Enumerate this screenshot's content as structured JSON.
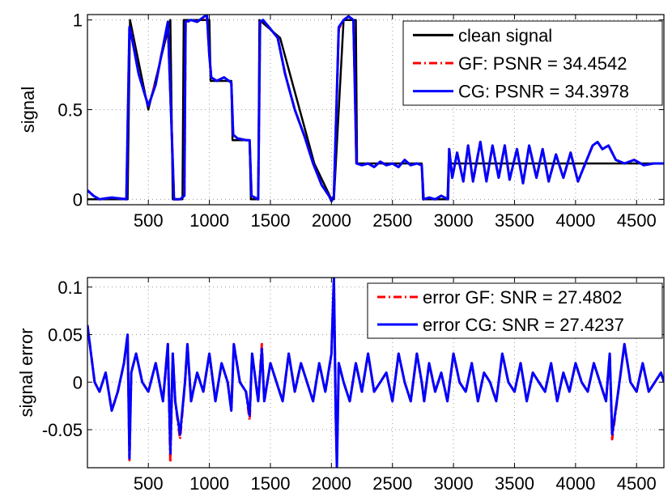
{
  "chart_data": [
    {
      "type": "line",
      "ylabel": "signal",
      "xlim": [
        1,
        4724
      ],
      "ylim": [
        -0.03,
        1.03
      ],
      "xticks": [
        500,
        1000,
        1500,
        2000,
        2500,
        3000,
        3500,
        4000,
        4500
      ],
      "yticks": [
        0,
        0.5,
        1
      ],
      "ytick_labels": [
        "0",
        "0.5",
        "1"
      ],
      "grid": true,
      "legend_position": "top-right",
      "series": [
        {
          "name": "clean signal",
          "color": "#000000",
          "style": "solid",
          "x": [
            1,
            330,
            350,
            500,
            680,
            700,
            780,
            790,
            800,
            1000,
            1010,
            1180,
            1190,
            1330,
            1340,
            1400,
            1410,
            1580,
            1860,
            2000,
            2020,
            2100,
            2200,
            2210,
            2740,
            2750,
            2950,
            2960,
            4724
          ],
          "values": [
            0,
            0,
            1,
            0.5,
            1,
            0,
            0,
            1,
            1,
            1,
            0.66,
            0.66,
            0.33,
            0.33,
            0,
            0,
            1,
            0.9,
            0.2,
            0,
            0,
            1,
            1,
            0.2,
            0.2,
            0,
            0,
            0.2,
            0.2
          ]
        },
        {
          "name": "GF: PSNR = 34.4542",
          "color": "#ff0000",
          "style": "dash-dot",
          "x": [
            1,
            50,
            100,
            200,
            320,
            345,
            360,
            420,
            500,
            560,
            620,
            660,
            690,
            710,
            760,
            795,
            805,
            850,
            900,
            980,
            1000,
            1015,
            1060,
            1120,
            1180,
            1195,
            1230,
            1300,
            1330,
            1345,
            1400,
            1415,
            1440,
            1500,
            1560,
            1620,
            1700,
            1780,
            1850,
            1920,
            1980,
            2000,
            2020,
            2060,
            2100,
            2140,
            2180,
            2205,
            2250,
            2300,
            2350,
            2400,
            2450,
            2500,
            2550,
            2600,
            2650,
            2700,
            2740,
            2755,
            2800,
            2850,
            2900,
            2955,
            2965,
            2990,
            3030,
            3080,
            3120,
            3160,
            3220,
            3270,
            3320,
            3370,
            3420,
            3460,
            3520,
            3570,
            3620,
            3680,
            3730,
            3780,
            3840,
            3900,
            3960,
            4020,
            4080,
            4140,
            4180,
            4220,
            4270,
            4330,
            4400,
            4480,
            4560,
            4640,
            4724
          ],
          "values": [
            0.05,
            0.02,
            0,
            0.01,
            0,
            0.95,
            0.93,
            0.7,
            0.52,
            0.65,
            0.85,
            0.98,
            0.4,
            0,
            0,
            0.02,
            0.98,
            1,
            0.99,
            1.02,
            0.8,
            0.68,
            0.66,
            0.68,
            0.65,
            0.36,
            0.34,
            0.33,
            0.33,
            0.02,
            0,
            0.98,
            1,
            0.95,
            0.9,
            0.7,
            0.5,
            0.35,
            0.2,
            0.08,
            0.02,
            0,
            0.02,
            0.95,
            1,
            1.02,
            1,
            0.2,
            0.19,
            0.2,
            0.18,
            0.21,
            0.19,
            0.2,
            0.18,
            0.22,
            0.19,
            0.2,
            0.19,
            0,
            0.01,
            0,
            0.02,
            0,
            0.28,
            0.12,
            0.26,
            0.1,
            0.3,
            0.1,
            0.32,
            0.1,
            0.3,
            0.12,
            0.3,
            0.11,
            0.28,
            0.09,
            0.3,
            0.12,
            0.28,
            0.1,
            0.25,
            0.12,
            0.26,
            0.1,
            0.2,
            0.3,
            0.32,
            0.28,
            0.3,
            0.22,
            0.2,
            0.22,
            0.19,
            0.2,
            0.2
          ]
        },
        {
          "name": "CG: PSNR = 34.3978",
          "color": "#0000ff",
          "style": "solid",
          "x": [
            1,
            50,
            100,
            200,
            320,
            345,
            360,
            420,
            500,
            560,
            620,
            660,
            690,
            710,
            760,
            795,
            805,
            850,
            900,
            980,
            1000,
            1015,
            1060,
            1120,
            1180,
            1195,
            1230,
            1300,
            1330,
            1345,
            1400,
            1415,
            1440,
            1500,
            1560,
            1620,
            1700,
            1780,
            1850,
            1920,
            1980,
            2000,
            2020,
            2060,
            2100,
            2140,
            2180,
            2205,
            2250,
            2300,
            2350,
            2400,
            2450,
            2500,
            2550,
            2600,
            2650,
            2700,
            2740,
            2755,
            2800,
            2850,
            2900,
            2955,
            2965,
            2990,
            3030,
            3080,
            3120,
            3160,
            3220,
            3270,
            3320,
            3370,
            3420,
            3460,
            3520,
            3570,
            3620,
            3680,
            3730,
            3780,
            3840,
            3900,
            3960,
            4020,
            4080,
            4140,
            4180,
            4220,
            4270,
            4330,
            4400,
            4480,
            4560,
            4640,
            4724
          ],
          "values": [
            0.05,
            0.02,
            0,
            0.01,
            0,
            0.96,
            0.92,
            0.7,
            0.52,
            0.64,
            0.85,
            0.99,
            0.4,
            0,
            0,
            0.02,
            0.99,
            1,
            0.99,
            1.03,
            0.8,
            0.68,
            0.66,
            0.68,
            0.65,
            0.36,
            0.34,
            0.33,
            0.33,
            0.02,
            0,
            0.99,
            1,
            0.95,
            0.9,
            0.7,
            0.5,
            0.35,
            0.2,
            0.08,
            0.02,
            -0.01,
            0.02,
            0.96,
            1,
            1.02,
            1,
            0.2,
            0.19,
            0.2,
            0.18,
            0.21,
            0.19,
            0.2,
            0.18,
            0.22,
            0.19,
            0.2,
            0.19,
            0,
            0.01,
            0,
            0.02,
            0,
            0.28,
            0.12,
            0.26,
            0.1,
            0.3,
            0.1,
            0.32,
            0.1,
            0.3,
            0.12,
            0.3,
            0.11,
            0.28,
            0.09,
            0.3,
            0.12,
            0.28,
            0.1,
            0.25,
            0.12,
            0.26,
            0.1,
            0.2,
            0.3,
            0.32,
            0.28,
            0.3,
            0.22,
            0.2,
            0.22,
            0.19,
            0.2,
            0.2
          ]
        }
      ]
    },
    {
      "type": "line",
      "ylabel": "signal error",
      "xlim": [
        1,
        4724
      ],
      "ylim": [
        -0.09,
        0.11
      ],
      "xticks": [
        500,
        1000,
        1500,
        2000,
        2500,
        3000,
        3500,
        4000,
        4500
      ],
      "yticks": [
        -0.05,
        0,
        0.05,
        0.1
      ],
      "ytick_labels": [
        "-0.05",
        "0",
        "0.05",
        "0.1"
      ],
      "grid": true,
      "legend_position": "top-right",
      "series": [
        {
          "name": "error GF: SNR = 27.4802",
          "color": "#ff0000",
          "style": "dash-dot",
          "x": [
            1,
            30,
            60,
            100,
            150,
            200,
            250,
            300,
            330,
            345,
            360,
            400,
            450,
            500,
            560,
            620,
            660,
            680,
            700,
            720,
            760,
            800,
            820,
            850,
            900,
            950,
            1000,
            1050,
            1100,
            1150,
            1180,
            1200,
            1250,
            1300,
            1330,
            1350,
            1400,
            1430,
            1450,
            1500,
            1550,
            1600,
            1650,
            1700,
            1750,
            1800,
            1850,
            1900,
            1950,
            2000,
            2020,
            2035,
            2045,
            2060,
            2100,
            2150,
            2200,
            2250,
            2300,
            2350,
            2400,
            2450,
            2500,
            2550,
            2600,
            2650,
            2700,
            2740,
            2760,
            2800,
            2850,
            2900,
            2950,
            3000,
            3050,
            3100,
            3150,
            3200,
            3250,
            3300,
            3350,
            3400,
            3450,
            3500,
            3550,
            3600,
            3650,
            3700,
            3750,
            3800,
            3850,
            3900,
            3950,
            4000,
            4050,
            4100,
            4150,
            4200,
            4250,
            4280,
            4300,
            4350,
            4400,
            4450,
            4500,
            4550,
            4600,
            4650,
            4700,
            4724
          ],
          "values": [
            0.06,
            0.03,
            0.0,
            -0.01,
            0.01,
            -0.03,
            -0.01,
            0.02,
            0.05,
            -0.082,
            0.01,
            0.03,
            0.0,
            -0.01,
            0.02,
            -0.02,
            0.04,
            -0.085,
            0.03,
            -0.02,
            -0.06,
            0.0,
            0.04,
            -0.02,
            0.01,
            -0.01,
            0.03,
            -0.02,
            0.02,
            0.0,
            -0.03,
            0.04,
            0.0,
            -0.01,
            -0.04,
            0.03,
            -0.02,
            0.04,
            -0.02,
            0.02,
            0.0,
            -0.02,
            0.03,
            -0.01,
            0.02,
            0.0,
            -0.02,
            0.02,
            -0.01,
            0.03,
            0.11,
            -0.03,
            -0.08,
            0.02,
            0.0,
            -0.02,
            0.02,
            -0.01,
            0.03,
            -0.01,
            0.0,
            0.01,
            -0.02,
            0.03,
            0.0,
            -0.02,
            0.03,
            0.0,
            -0.02,
            0.02,
            -0.01,
            0.01,
            -0.02,
            0.03,
            0.0,
            -0.01,
            0.02,
            -0.02,
            0.01,
            0.0,
            -0.02,
            0.03,
            0.0,
            -0.01,
            0.02,
            -0.02,
            0.01,
            0.0,
            -0.01,
            0.02,
            -0.02,
            0.01,
            -0.01,
            0.02,
            0.0,
            -0.01,
            0.02,
            0.0,
            -0.02,
            0.03,
            -0.06,
            -0.01,
            0.04,
            0.0,
            -0.01,
            0.02,
            -0.01,
            0.0,
            0.01,
            0.0
          ]
        },
        {
          "name": "error CG: SNR = 27.4237",
          "color": "#0000ff",
          "style": "solid",
          "x": [
            1,
            30,
            60,
            100,
            150,
            200,
            250,
            300,
            330,
            345,
            360,
            400,
            450,
            500,
            560,
            620,
            660,
            680,
            700,
            720,
            760,
            800,
            820,
            850,
            900,
            950,
            1000,
            1050,
            1100,
            1150,
            1180,
            1200,
            1250,
            1300,
            1330,
            1350,
            1400,
            1430,
            1450,
            1500,
            1550,
            1600,
            1650,
            1700,
            1750,
            1800,
            1850,
            1900,
            1950,
            2000,
            2020,
            2035,
            2045,
            2060,
            2100,
            2150,
            2200,
            2250,
            2300,
            2350,
            2400,
            2450,
            2500,
            2550,
            2600,
            2650,
            2700,
            2740,
            2760,
            2800,
            2850,
            2900,
            2950,
            3000,
            3050,
            3100,
            3150,
            3200,
            3250,
            3300,
            3350,
            3400,
            3450,
            3500,
            3550,
            3600,
            3650,
            3700,
            3750,
            3800,
            3850,
            3900,
            3950,
            4000,
            4050,
            4100,
            4150,
            4200,
            4250,
            4280,
            4300,
            4350,
            4400,
            4450,
            4500,
            4550,
            4600,
            4650,
            4700,
            4724
          ],
          "values": [
            0.06,
            0.03,
            0.0,
            -0.01,
            0.01,
            -0.03,
            -0.01,
            0.02,
            0.05,
            -0.08,
            0.01,
            0.03,
            0.0,
            -0.01,
            0.02,
            -0.02,
            0.04,
            -0.075,
            0.03,
            -0.02,
            -0.055,
            0.0,
            0.04,
            -0.02,
            0.01,
            -0.01,
            0.03,
            -0.02,
            0.02,
            0.0,
            -0.03,
            0.04,
            0.0,
            -0.01,
            -0.035,
            0.03,
            -0.02,
            0.035,
            -0.02,
            0.02,
            0.0,
            -0.02,
            0.03,
            -0.01,
            0.02,
            0.0,
            -0.02,
            0.02,
            -0.01,
            0.03,
            0.11,
            -0.03,
            -0.09,
            0.02,
            0.0,
            -0.02,
            0.02,
            -0.01,
            0.03,
            -0.01,
            0.0,
            0.01,
            -0.02,
            0.03,
            0.0,
            -0.02,
            0.03,
            0.0,
            -0.02,
            0.02,
            -0.01,
            0.01,
            -0.02,
            0.03,
            0.0,
            -0.01,
            0.02,
            -0.02,
            0.01,
            0.0,
            -0.02,
            0.03,
            0.0,
            -0.01,
            0.02,
            -0.02,
            0.01,
            0.0,
            -0.01,
            0.02,
            -0.02,
            0.01,
            -0.01,
            0.02,
            0.0,
            -0.01,
            0.02,
            0.0,
            -0.02,
            0.03,
            -0.055,
            -0.01,
            0.04,
            0.0,
            -0.01,
            0.02,
            -0.01,
            0.0,
            0.01,
            0.0
          ]
        }
      ]
    }
  ]
}
